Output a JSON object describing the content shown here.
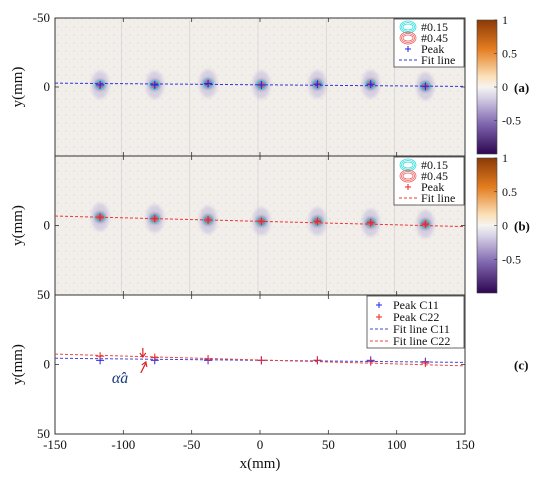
{
  "chart_data": [
    {
      "panel": "(a)",
      "type": "scatter",
      "xlim": [
        -150,
        150
      ],
      "ylim": [
        -50,
        50
      ],
      "y_reversed": true,
      "x_ticks": [
        -150,
        -100,
        -50,
        0,
        50,
        100,
        150
      ],
      "y_ticks": [
        -50,
        0
      ],
      "ylabel": "y(mm)",
      "background": "heatmap",
      "legend": [
        "#0.15",
        "#0.45",
        "Peak",
        "Fit line"
      ],
      "legend_position": "top-right",
      "colorbar": {
        "ticks": [
          1,
          0.5,
          0,
          -0.5
        ],
        "range": [
          -1,
          1
        ]
      },
      "series": [
        {
          "name": "Peak",
          "marker": "+",
          "color": "#2222ee",
          "points": [
            [
              -117,
              -1.5
            ],
            [
              -77,
              -1.5
            ],
            [
              -38,
              -2.5
            ],
            [
              1,
              -1.5
            ],
            [
              42,
              -2
            ],
            [
              81,
              -2
            ],
            [
              121,
              -0.5
            ]
          ]
        },
        {
          "name": "Fit line",
          "style": "dashed",
          "color": "#3333dd",
          "x": [
            -150,
            150
          ],
          "y": [
            -2.8,
            -0.4
          ]
        }
      ]
    },
    {
      "panel": "(b)",
      "type": "scatter",
      "xlim": [
        -150,
        150
      ],
      "ylim": [
        -50,
        50
      ],
      "y_reversed": true,
      "x_ticks": [
        -150,
        -100,
        -50,
        0,
        50,
        100,
        150
      ],
      "y_ticks": [
        50,
        0
      ],
      "ylabel": "y(mm)",
      "background": "heatmap",
      "legend": [
        "#0.15",
        "#0.45",
        "Peak",
        "Fit line"
      ],
      "legend_position": "top-right",
      "colorbar": {
        "ticks": [
          1,
          0.5,
          0,
          -0.5
        ],
        "range": [
          -1,
          1
        ]
      },
      "series": [
        {
          "name": "Peak",
          "marker": "+",
          "color": "#ee2222",
          "points": [
            [
              -117,
              -6
            ],
            [
              -77,
              -5
            ],
            [
              -38,
              -4
            ],
            [
              1,
              -3
            ],
            [
              42,
              -3
            ],
            [
              81,
              -2
            ],
            [
              121,
              -1
            ]
          ]
        },
        {
          "name": "Fit line",
          "style": "dashed",
          "color": "#ee3333",
          "x": [
            -150,
            150
          ],
          "y": [
            -6.8,
            0.8
          ]
        }
      ]
    },
    {
      "panel": "(c)",
      "type": "scatter",
      "xlim": [
        -150,
        150
      ],
      "ylim": [
        -50,
        50
      ],
      "y_reversed": true,
      "x_ticks": [
        -150,
        -100,
        -50,
        0,
        50,
        100,
        150
      ],
      "y_ticks": [
        50,
        0
      ],
      "xlabel": "x(mm)",
      "ylabel": "y(mm)",
      "legend": [
        "Peak C11",
        "Peak C22",
        "Fit line C11",
        "Fit line C22"
      ],
      "legend_position": "top-right",
      "annotation": "α̂a",
      "series": [
        {
          "name": "Peak C11",
          "marker": "+",
          "color": "#2222ee",
          "points": [
            [
              -117,
              -3
            ],
            [
              -77,
              -3
            ],
            [
              -38,
              -3
            ],
            [
              1,
              -3
            ],
            [
              42,
              -3
            ],
            [
              81,
              -3
            ],
            [
              121,
              -2
            ]
          ]
        },
        {
          "name": "Peak C22",
          "marker": "+",
          "color": "#ee2222",
          "points": [
            [
              -117,
              -6
            ],
            [
              -77,
              -5
            ],
            [
              -38,
              -4
            ],
            [
              1,
              -3
            ],
            [
              42,
              -3
            ],
            [
              81,
              -2
            ],
            [
              121,
              -1
            ]
          ]
        },
        {
          "name": "Fit line C11",
          "style": "dashed",
          "color": "#4444dd",
          "x": [
            -150,
            150
          ],
          "y": [
            -4.5,
            -1.5
          ]
        },
        {
          "name": "Fit line C22",
          "style": "dashed",
          "color": "#ee4444",
          "x": [
            -150,
            150
          ],
          "y": [
            -7.5,
            1.0
          ]
        }
      ]
    }
  ],
  "colors": {
    "blue_marker": "#2222ee",
    "red_marker": "#ee2222",
    "contour_015": "#33dddd",
    "contour_045": "#ee6666",
    "colorbar_top": "#a34a0a",
    "colorbar_bottom": "#3a0a5a"
  }
}
